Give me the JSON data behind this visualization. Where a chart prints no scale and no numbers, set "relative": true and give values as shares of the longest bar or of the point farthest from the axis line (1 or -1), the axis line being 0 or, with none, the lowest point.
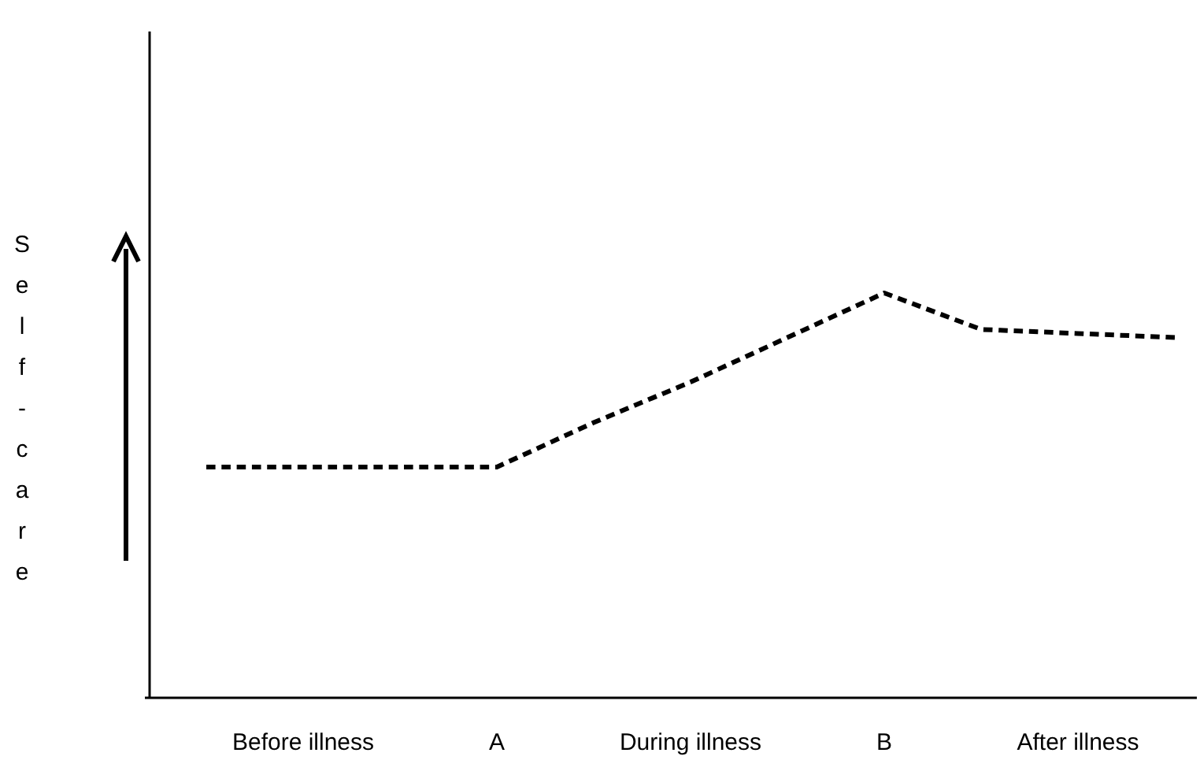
{
  "chart_data": {
    "type": "line",
    "relative": true,
    "ylabel": "Self-care",
    "categories": [
      null,
      "Before illness",
      null,
      "A",
      null,
      "During illness",
      null,
      "B",
      null,
      "After illness",
      null
    ],
    "series": [
      {
        "color": "#000000",
        "values": [
          0.57,
          0.57,
          0.57,
          0.57,
          0.68,
          0.78,
          0.89,
          1,
          0.91,
          0.9,
          0.89
        ]
      }
    ],
    "line_style": "dashed",
    "marker": "none",
    "grid": false
  }
}
